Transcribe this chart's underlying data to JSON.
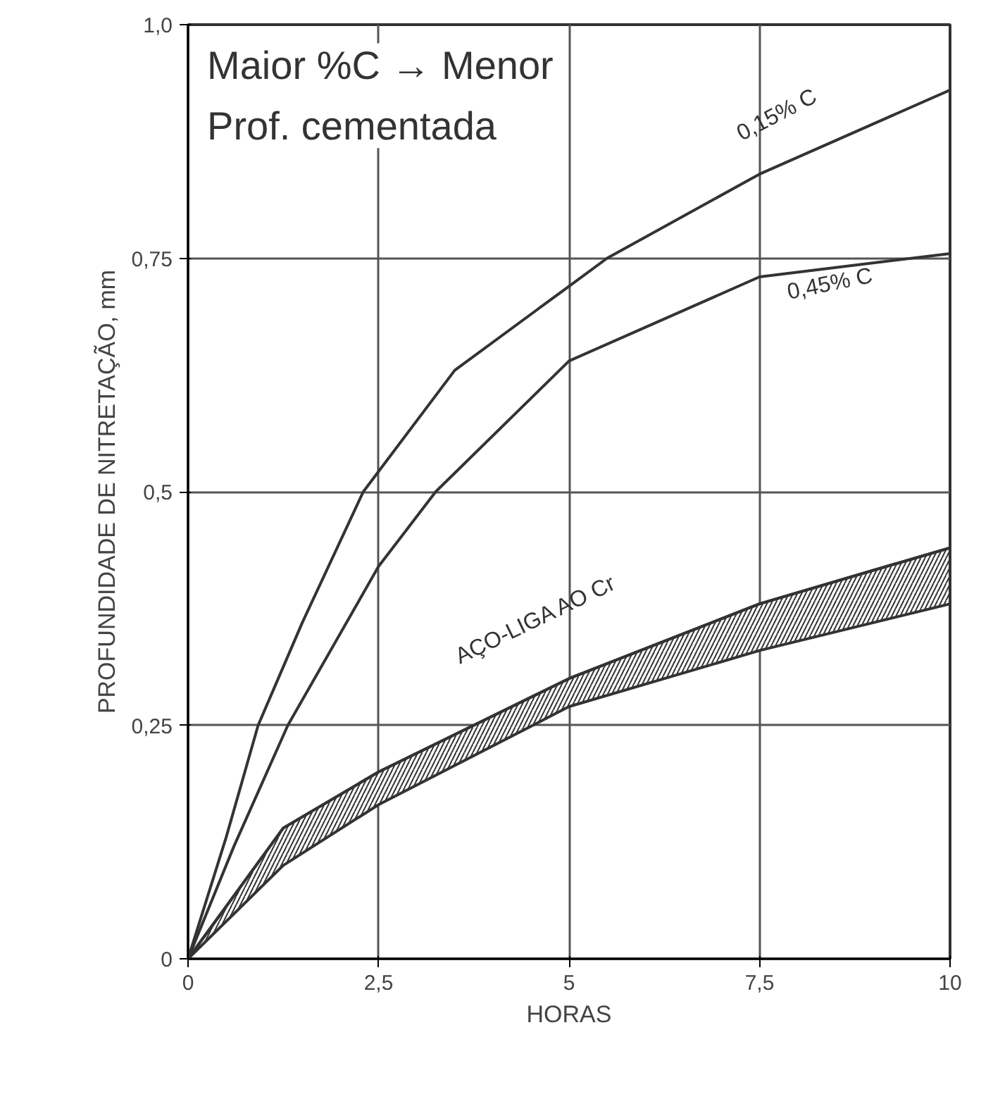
{
  "chart_data": {
    "type": "line",
    "xlabel": "HORAS",
    "ylabel": "PROFUNDIDADE DE NITRETAÇÃO, mm",
    "xlim": [
      0,
      10
    ],
    "ylim": [
      0,
      1.0
    ],
    "xticks": [
      0,
      {
        "value": 2.5,
        "label": "2,5"
      },
      5,
      {
        "value": 7.5,
        "label": "7,5"
      },
      10
    ],
    "yticks": [
      0,
      {
        "value": 0.25,
        "label": "0,25"
      },
      {
        "value": 0.5,
        "label": "0,5"
      },
      {
        "value": 0.75,
        "label": "0,75"
      },
      {
        "value": 1.0,
        "label": "1,0"
      }
    ],
    "grid": true,
    "line_style": "solid",
    "marker": "none",
    "series": [
      {
        "name": "0,15% C",
        "color": "#333333",
        "x": [
          0,
          0.5,
          0.92,
          1.5,
          2.3,
          3.5,
          5,
          5.5,
          7.5,
          10
        ],
        "values": [
          0,
          0.13,
          0.25,
          0.36,
          0.5,
          0.63,
          0.72,
          0.75,
          0.84,
          0.93
        ]
      },
      {
        "name": "0,45% C",
        "color": "#333333",
        "x": [
          0,
          0.6,
          1.31,
          2.5,
          3.25,
          5,
          7.5,
          10
        ],
        "values": [
          0,
          0.12,
          0.25,
          0.42,
          0.5,
          0.64,
          0.73,
          0.755
        ]
      },
      {
        "name": "AÇO-LIGA AO Cr",
        "color": "#333333",
        "x": [
          0,
          1.25,
          2.5,
          5,
          7.5,
          10
        ],
        "values": [
          0,
          0.14,
          0.2,
          0.3,
          0.38,
          0.44
        ],
        "lower": [
          0,
          0.1,
          0.165,
          0.27,
          0.33,
          0.38
        ],
        "upper": [
          0,
          0.14,
          0.2,
          0.3,
          0.38,
          0.44
        ]
      }
    ],
    "annotations": [
      "Maior %C → Menor\nProf. cementada"
    ]
  }
}
